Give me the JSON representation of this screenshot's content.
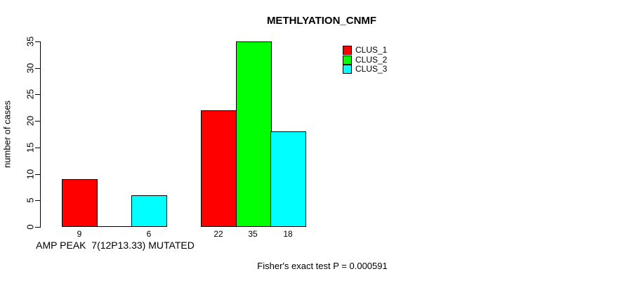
{
  "chart_data": {
    "type": "bar",
    "title": "METHLYATION_CNMF",
    "ylabel": "number of cases",
    "xlabel": "AMP PEAK  7(12P13.33) MUTATED",
    "annotation": "Fisher's exact test P = 0.000591",
    "ylim": [
      0,
      35
    ],
    "yticks": [
      0,
      5,
      10,
      15,
      20,
      25,
      30,
      35
    ],
    "grid": false,
    "legend_position": "top-right",
    "legend": [
      {
        "name": "CLUS_1",
        "color": "#ff0000"
      },
      {
        "name": "CLUS_2",
        "color": "#00ff00"
      },
      {
        "name": "CLUS_3",
        "color": "#00ffff"
      }
    ],
    "categories": [
      "AMP PEAK  7(12P13.33) MUTATED",
      ""
    ],
    "series": [
      {
        "name": "CLUS_1",
        "values": [
          9,
          22
        ]
      },
      {
        "name": "CLUS_2",
        "values": [
          0,
          35
        ]
      },
      {
        "name": "CLUS_3",
        "values": [
          6,
          18
        ]
      }
    ],
    "bar_value_labels": [
      [
        "9",
        "",
        "6"
      ],
      [
        "22",
        "35",
        "18"
      ]
    ]
  }
}
